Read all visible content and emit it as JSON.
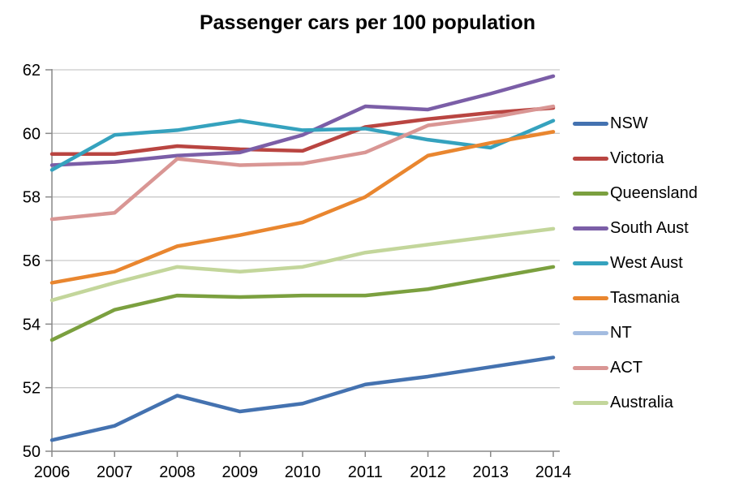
{
  "chart_data": {
    "type": "line",
    "title": "Passenger cars per 100 population",
    "x_categories": [
      "2006",
      "2007",
      "2008",
      "2009",
      "2010",
      "2011",
      "2012",
      "2013",
      "2014"
    ],
    "xlabel": "",
    "ylabel": "",
    "ylim": [
      50,
      62
    ],
    "y_ticks": [
      50,
      52,
      54,
      56,
      58,
      60,
      62
    ],
    "grid": true,
    "legend_position": "right",
    "series": [
      {
        "name": "NSW",
        "color": "#4472B0",
        "values": [
          50.35,
          50.8,
          51.75,
          51.25,
          51.5,
          52.1,
          52.35,
          52.65,
          52.95
        ]
      },
      {
        "name": "Victoria",
        "color": "#B94541",
        "values": [
          59.35,
          59.35,
          59.6,
          59.5,
          59.45,
          60.2,
          60.45,
          60.65,
          60.8
        ]
      },
      {
        "name": "Queensland",
        "color": "#7BA03F",
        "values": [
          53.5,
          54.45,
          54.9,
          54.85,
          54.9,
          54.9,
          55.1,
          55.45,
          55.8
        ]
      },
      {
        "name": "South Aust",
        "color": "#7B5EA7",
        "values": [
          59.0,
          59.1,
          59.3,
          59.4,
          59.95,
          60.85,
          60.75,
          61.25,
          61.8
        ]
      },
      {
        "name": "West Aust",
        "color": "#35A2BE",
        "values": [
          58.85,
          59.95,
          60.1,
          60.4,
          60.1,
          60.15,
          59.8,
          59.55,
          60.4
        ]
      },
      {
        "name": "Tasmania",
        "color": "#E9862F",
        "values": [
          55.3,
          55.65,
          56.45,
          56.8,
          57.2,
          58.0,
          59.3,
          59.7,
          60.05
        ]
      },
      {
        "name": "NT",
        "color": "#A3BCE0",
        "values": null
      },
      {
        "name": "ACT",
        "color": "#D99694",
        "values": [
          57.3,
          57.5,
          59.2,
          59.0,
          59.05,
          59.4,
          60.25,
          60.5,
          60.85
        ]
      },
      {
        "name": "Australia",
        "color": "#C3D69B",
        "values": [
          54.75,
          55.3,
          55.8,
          55.65,
          55.8,
          56.25,
          56.5,
          56.75,
          57.0
        ]
      }
    ]
  },
  "style": {
    "gridline_color": "#C9C9C9",
    "axis_color": "#898989",
    "line_width": 4.5
  }
}
